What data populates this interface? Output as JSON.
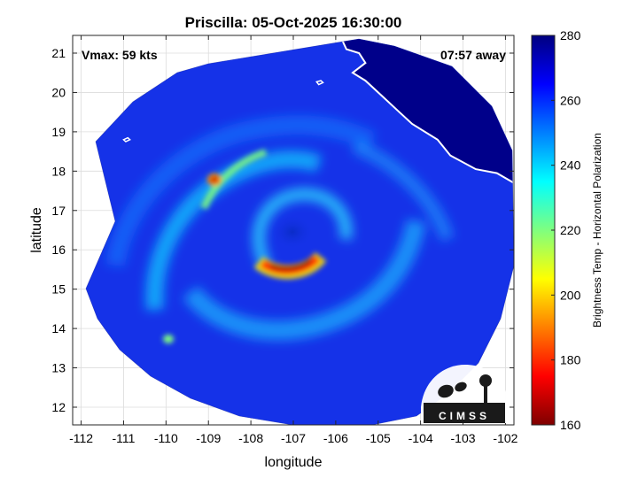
{
  "chart_data": {
    "type": "heatmap",
    "title": "Priscilla: 05-Oct-2025 16:30:00",
    "xlabel": "longitude",
    "ylabel": "latitude",
    "xlim": [
      -112.2,
      -101.8
    ],
    "ylim": [
      11.55,
      21.45
    ],
    "xticks": [
      -112,
      -111,
      -110,
      -109,
      -108,
      -107,
      -106,
      -105,
      -104,
      -103,
      -102
    ],
    "yticks": [
      12,
      13,
      14,
      15,
      16,
      17,
      18,
      19,
      20,
      21
    ],
    "grid": true,
    "annotations": {
      "vmax": "Vmax: 59 kts",
      "away": "07:57 away"
    },
    "storm_center": {
      "lon": -107.0,
      "lat": 16.2
    },
    "colorbar": {
      "label": "Brightness Temp - Horizontal Polarization",
      "range": [
        160,
        280
      ],
      "ticks": [
        160,
        180,
        200,
        220,
        240,
        260,
        280
      ],
      "colormap": "jet"
    },
    "logo": {
      "text": "CIMSS"
    },
    "coastline": [
      [
        -105.9,
        21.45
      ],
      [
        -105.75,
        21.1
      ],
      [
        -105.45,
        21.0
      ],
      [
        -105.3,
        20.75
      ],
      [
        -105.6,
        20.5
      ],
      [
        -105.3,
        20.3
      ],
      [
        -104.9,
        19.9
      ],
      [
        -104.5,
        19.5
      ],
      [
        -104.2,
        19.2
      ],
      [
        -103.6,
        18.8
      ],
      [
        -103.3,
        18.4
      ],
      [
        -102.7,
        18.05
      ],
      [
        -102.2,
        17.95
      ],
      [
        -101.8,
        17.7
      ]
    ],
    "island_contours": [
      [
        [
          -110.9,
          18.85
        ],
        [
          -110.85,
          18.8
        ],
        [
          -110.95,
          18.75
        ],
        [
          -111.0,
          18.8
        ],
        [
          -110.9,
          18.85
        ]
      ],
      [
        [
          -106.35,
          20.3
        ],
        [
          -106.3,
          20.25
        ],
        [
          -106.4,
          20.2
        ],
        [
          -106.45,
          20.27
        ],
        [
          -106.35,
          20.3
        ]
      ]
    ]
  },
  "colors": {
    "jet": [
      "#00007f",
      "#0000ff",
      "#007fff",
      "#00ffff",
      "#7fff7f",
      "#ffff00",
      "#ff7f00",
      "#ff0000",
      "#7f0000"
    ],
    "background": "#1532e8",
    "coastline": "#ffffff",
    "land": "#00008a"
  }
}
